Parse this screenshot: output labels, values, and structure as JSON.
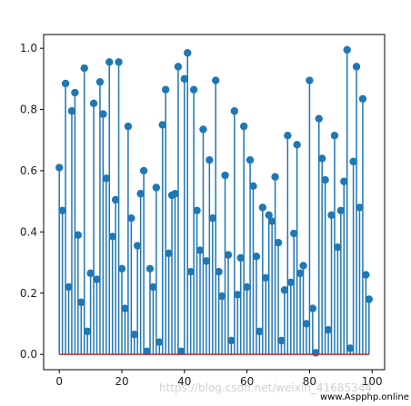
{
  "chart_data": {
    "type": "stem",
    "x_start": 0,
    "values": [
      0.61,
      0.47,
      0.885,
      0.22,
      0.795,
      0.855,
      0.39,
      0.17,
      0.935,
      0.075,
      0.265,
      0.82,
      0.245,
      0.89,
      0.785,
      0.575,
      0.955,
      0.385,
      0.505,
      0.955,
      0.28,
      0.15,
      0.745,
      0.445,
      0.065,
      0.355,
      0.525,
      0.6,
      0.01,
      0.28,
      0.22,
      0.545,
      0.04,
      0.75,
      0.865,
      0.33,
      0.52,
      0.525,
      0.94,
      0.01,
      0.9,
      0.985,
      0.27,
      0.865,
      0.47,
      0.34,
      0.735,
      0.305,
      0.635,
      0.445,
      0.895,
      0.27,
      0.19,
      0.585,
      0.325,
      0.045,
      0.795,
      0.195,
      0.315,
      0.745,
      0.22,
      0.635,
      0.55,
      0.32,
      0.075,
      0.48,
      0.25,
      0.455,
      0.435,
      0.58,
      0.365,
      0.045,
      0.21,
      0.715,
      0.235,
      0.395,
      0.685,
      0.265,
      0.29,
      0.1,
      0.895,
      0.15,
      0.005,
      0.77,
      0.64,
      0.57,
      0.08,
      0.455,
      0.715,
      0.35,
      0.47,
      0.565,
      0.995,
      0.02,
      0.63,
      0.94,
      0.48,
      0.835,
      0.26,
      0.18
    ],
    "xlim": [
      -5,
      104
    ],
    "ylim": [
      -0.05,
      1.045
    ],
    "xticks": [
      "0",
      "20",
      "40",
      "60",
      "80",
      "100"
    ],
    "yticks": [
      "0.0",
      "0.2",
      "0.4",
      "0.6",
      "0.8",
      "1.0"
    ],
    "title": "",
    "xlabel": "",
    "ylabel": "",
    "grid": false,
    "color": "#1f77b4"
  },
  "watermark": {
    "text1": "https://blog.csdn.net/weixin_41685344",
    "text2": "www.Aspphp.online"
  }
}
